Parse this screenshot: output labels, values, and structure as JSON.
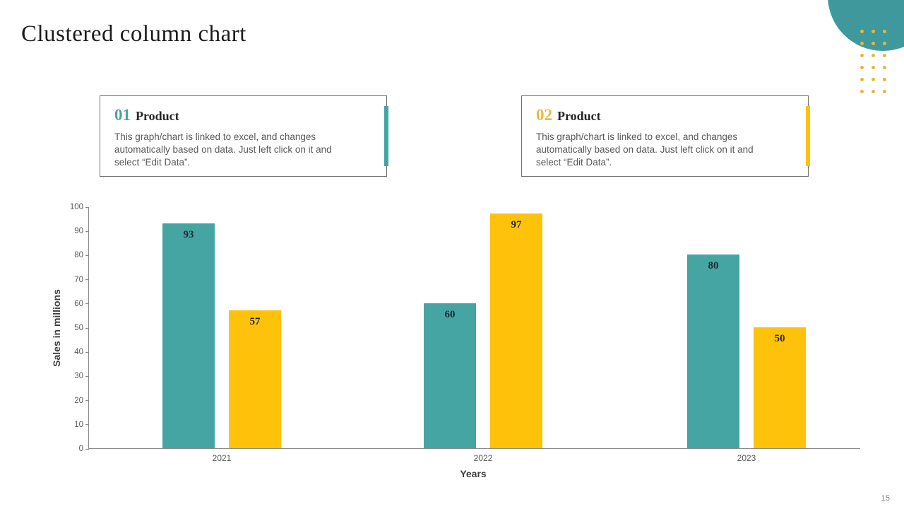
{
  "slide": {
    "title": "Clustered column chart",
    "page_number": "15"
  },
  "cards": [
    {
      "number": "01",
      "heading": "Product",
      "body": "This graph/chart is linked to excel, and changes automatically based on data. Just left click on it and select “Edit Data”.",
      "accent_color": "#45a5a3",
      "number_color": "#4aa2a2"
    },
    {
      "number": "02",
      "heading": "Product",
      "body": "This graph/chart is linked to excel, and changes automatically based on data. Just left click on it and select “Edit Data”.",
      "accent_color": "#ffc20a",
      "number_color": "#ecb83c"
    }
  ],
  "chart_data": {
    "type": "bar",
    "title": "",
    "categories": [
      "2021",
      "2022",
      "2023"
    ],
    "series": [
      {
        "name": "01 Product",
        "color": "#45a5a3",
        "values": [
          93,
          60,
          80
        ]
      },
      {
        "name": "02 Product",
        "color": "#ffc20a",
        "values": [
          57,
          97,
          50
        ]
      }
    ],
    "xlabel": "Years",
    "ylabel": "Sales in millions",
    "ylim": [
      0,
      100
    ],
    "ytick_step": 10,
    "grid": false,
    "legend": "none",
    "value_labels": true
  },
  "colors": {
    "teal": "#45a5a3",
    "gold": "#ffc20a",
    "circle_teal": "#3f989c",
    "dot_gold": "#e3b83e",
    "axis_gray": "#8a8a8a",
    "text_gray": "#595959"
  }
}
